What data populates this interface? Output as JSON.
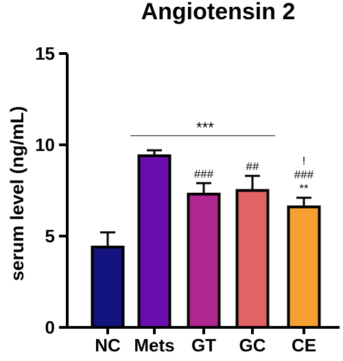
{
  "chart_data": {
    "type": "bar",
    "title": "Angiotensin 2",
    "xlabel": "",
    "ylabel": "serum level (ng/mL)",
    "ylim": [
      0,
      15
    ],
    "yticks": [
      0,
      5,
      10,
      15
    ],
    "categories": [
      "NC",
      "Mets",
      "GT",
      "GC",
      "CE"
    ],
    "values": [
      4.4,
      9.4,
      7.3,
      7.5,
      6.6
    ],
    "errors": [
      0.8,
      0.3,
      0.6,
      0.8,
      0.5
    ],
    "colors": [
      "#141480",
      "#6a0dad",
      "#b0288f",
      "#e06464",
      "#f5a030"
    ],
    "bracket": {
      "from": "Mets",
      "to": "CE",
      "y": 10.5,
      "label": "***"
    },
    "bar_annotations": [
      {
        "category": "GT",
        "lines": [
          "###"
        ]
      },
      {
        "category": "GC",
        "lines": [
          "##"
        ]
      },
      {
        "category": "CE",
        "lines": [
          "!",
          "###",
          "**"
        ]
      }
    ]
  }
}
